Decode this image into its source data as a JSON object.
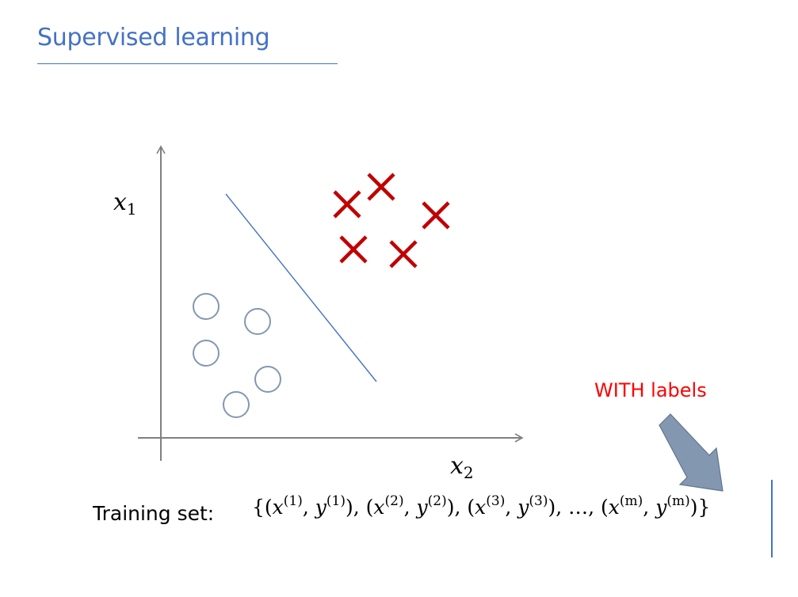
{
  "slide": {
    "title": "Supervised learning"
  },
  "plot": {
    "y_axis_label": "x",
    "y_axis_subscript": "1",
    "x_axis_label": "x",
    "x_axis_subscript": "2",
    "colors": {
      "axis": "#808080",
      "circle": "#8497b0",
      "cross": "#c00000",
      "boundary": "#4472c4"
    }
  },
  "annotation": {
    "text": "WITH labels",
    "color": "#ff0000",
    "arrow_color": "#8497b0"
  },
  "training": {
    "label": "Training set:",
    "set_open": "{",
    "set_close": "}",
    "ellipsis": "…",
    "x_symbol": "x",
    "y_symbol": "y",
    "pairs": [
      {
        "x_index": "(1)",
        "y_index": "(1)"
      },
      {
        "x_index": "(2)",
        "y_index": "(2)"
      },
      {
        "x_index": "(3)",
        "y_index": "(3)"
      },
      {
        "x_index": "(m)",
        "y_index": "(m)"
      }
    ]
  }
}
